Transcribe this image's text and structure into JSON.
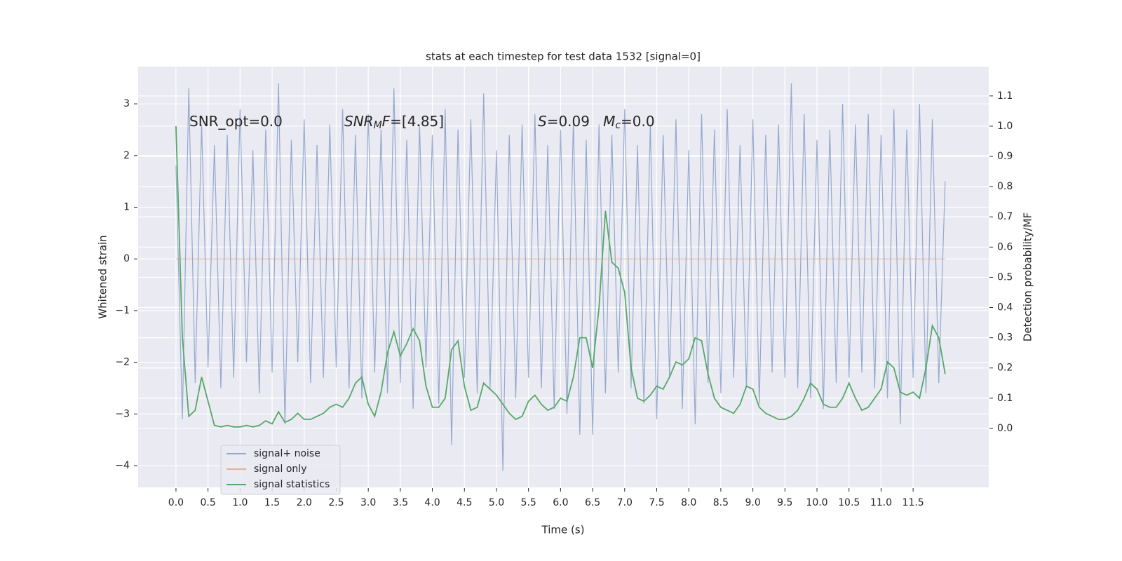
{
  "chart_data": {
    "type": "line",
    "title": "stats at each timestep for test data 1532 [signal=0]",
    "xlabel": "Time (s)",
    "ylabel": "Whitened strain",
    "y2label": "Detection probability/MF",
    "xlim": [
      -0.59,
      12.68
    ],
    "ylim": [
      -4.42,
      3.72
    ],
    "y2lim": [
      -0.195,
      1.197
    ],
    "xticks": [
      {
        "value": 0,
        "label": "0.0"
      },
      {
        "value": 0.5,
        "label": "0.5"
      },
      {
        "value": 1,
        "label": "1.0"
      },
      {
        "value": 1.5,
        "label": "1.5"
      },
      {
        "value": 2,
        "label": "2.0"
      },
      {
        "value": 2.5,
        "label": "2.5"
      },
      {
        "value": 3,
        "label": "3.0"
      },
      {
        "value": 3.5,
        "label": "3.5"
      },
      {
        "value": 4,
        "label": "4.0"
      },
      {
        "value": 4.5,
        "label": "4.5"
      },
      {
        "value": 5,
        "label": "5.0"
      },
      {
        "value": 5.5,
        "label": "5.5"
      },
      {
        "value": 6,
        "label": "6.0"
      },
      {
        "value": 6.5,
        "label": "6.5"
      },
      {
        "value": 7,
        "label": "7.0"
      },
      {
        "value": 7.5,
        "label": "7.5"
      },
      {
        "value": 8,
        "label": "8.0"
      },
      {
        "value": 8.5,
        "label": "8.5"
      },
      {
        "value": 9,
        "label": "9.0"
      },
      {
        "value": 9.5,
        "label": "9.5"
      },
      {
        "value": 10,
        "label": "10.0"
      },
      {
        "value": 10.5,
        "label": "10.5"
      },
      {
        "value": 11,
        "label": "11.0"
      },
      {
        "value": 11.5,
        "label": "11.5"
      }
    ],
    "yticks": [
      3,
      2,
      1,
      0,
      {
        "value": -1,
        "label": "−1"
      },
      {
        "value": -2,
        "label": "−2"
      },
      {
        "value": -3,
        "label": "−3"
      },
      {
        "value": -4,
        "label": "−4"
      }
    ],
    "y2ticks": [
      {
        "value": 0,
        "label": "0.0"
      },
      {
        "value": 0.1,
        "label": "0.1"
      },
      {
        "value": 0.2,
        "label": "0.2"
      },
      {
        "value": 0.3,
        "label": "0.3"
      },
      {
        "value": 0.4,
        "label": "0.4"
      },
      {
        "value": 0.5,
        "label": "0.5"
      },
      {
        "value": 0.6,
        "label": "0.6"
      },
      {
        "value": 0.7,
        "label": "0.7"
      },
      {
        "value": 0.8,
        "label": "0.8"
      },
      {
        "value": 0.9,
        "label": "0.9"
      },
      {
        "value": 1,
        "label": "1.0"
      },
      {
        "value": 1.1,
        "label": "1.1"
      }
    ],
    "grid": true,
    "legend": "lower left",
    "x": [
      0,
      0.1,
      0.2,
      0.3,
      0.4,
      0.5,
      0.6,
      0.7,
      0.8,
      0.9,
      1,
      1.1,
      1.2,
      1.3,
      1.4,
      1.5,
      1.6,
      1.7,
      1.8,
      1.9,
      2,
      2.1,
      2.2,
      2.3,
      2.4,
      2.5,
      2.6,
      2.7,
      2.8,
      2.9,
      3,
      3.1,
      3.2,
      3.3,
      3.4,
      3.5,
      3.6,
      3.7,
      3.8,
      3.9,
      4,
      4.1,
      4.2,
      4.3,
      4.4,
      4.5,
      4.6,
      4.7,
      4.8,
      4.9,
      5,
      5.1,
      5.2,
      5.3,
      5.4,
      5.5,
      5.6,
      5.7,
      5.8,
      5.9,
      6,
      6.1,
      6.2,
      6.3,
      6.4,
      6.5,
      6.6,
      6.7,
      6.8,
      6.9,
      7,
      7.1,
      7.2,
      7.3,
      7.4,
      7.5,
      7.6,
      7.7,
      7.8,
      7.9,
      8,
      8.1,
      8.2,
      8.3,
      8.4,
      8.5,
      8.6,
      8.7,
      8.8,
      8.9,
      9,
      9.1,
      9.2,
      9.3,
      9.4,
      9.5,
      9.6,
      9.7,
      9.8,
      9.9,
      10,
      10.1,
      10.2,
      10.3,
      10.4,
      10.5,
      10.6,
      10.7,
      10.8,
      10.9,
      11,
      11.1,
      11.2,
      11.3,
      11.4,
      11.5,
      11.6,
      11.7,
      11.8,
      11.9,
      12
    ],
    "series": [
      {
        "name": "signal+ noise",
        "color": "#4c72b0",
        "values": [
          1.8,
          -3.1,
          3.3,
          -2.4,
          2.6,
          -2.1,
          2.2,
          -2.5,
          2.4,
          -2.3,
          2.9,
          -2.0,
          2.1,
          -2.6,
          2.5,
          -2.2,
          3.4,
          -3.2,
          2.3,
          -2.0,
          2.7,
          -2.4,
          2.2,
          -2.3,
          2.6,
          -2.1,
          2.9,
          -2.5,
          2.4,
          -2.7,
          2.8,
          -2.2,
          2.5,
          -2.6,
          3.3,
          -2.4,
          2.3,
          -2.9,
          2.6,
          -2.1,
          2.4,
          -2.8,
          2.9,
          -3.6,
          2.5,
          -2.3,
          2.7,
          -2.6,
          3.2,
          -2.5,
          2.1,
          -4.1,
          2.4,
          -2.7,
          2.6,
          -2.3,
          2.8,
          -2.5,
          2.2,
          -2.9,
          2.5,
          -3.0,
          2.7,
          -3.4,
          2.3,
          -3.4,
          2.6,
          -2.6,
          2.4,
          -2.2,
          2.9,
          -2.5,
          2.2,
          -2.8,
          2.6,
          -3.1,
          2.4,
          -2.3,
          2.7,
          -2.9,
          2.1,
          -3.2,
          2.8,
          -2.4,
          2.5,
          -2.6,
          2.9,
          -2.3,
          2.2,
          -2.5,
          2.7,
          -2.8,
          2.4,
          -2.2,
          2.6,
          -2.3,
          3.4,
          -2.5,
          2.8,
          -2.7,
          2.3,
          -2.9,
          2.5,
          -2.4,
          3.0,
          -2.3,
          2.6,
          -2.2,
          2.8,
          -2.5,
          2.4,
          -2.7,
          2.9,
          -3.2,
          2.5,
          -2.3,
          3.0,
          -2.6,
          2.7,
          -2.4,
          1.5
        ]
      },
      {
        "name": "signal only",
        "color": "#dd8452",
        "values": [
          0,
          0,
          0,
          0,
          0,
          0,
          0,
          0,
          0,
          0,
          0,
          0,
          0,
          0,
          0,
          0,
          0,
          0,
          0,
          0,
          0,
          0,
          0,
          0,
          0,
          0,
          0,
          0,
          0,
          0,
          0,
          0,
          0,
          0,
          0,
          0,
          0,
          0,
          0,
          0,
          0,
          0,
          0,
          0,
          0,
          0,
          0,
          0,
          0,
          0,
          0,
          0,
          0,
          0,
          0,
          0,
          0,
          0,
          0,
          0,
          0,
          0,
          0,
          0,
          0,
          0,
          0,
          0,
          0,
          0,
          0,
          0,
          0,
          0,
          0,
          0,
          0,
          0,
          0,
          0,
          0,
          0,
          0,
          0,
          0,
          0,
          0,
          0,
          0,
          0,
          0,
          0,
          0,
          0,
          0,
          0,
          0,
          0,
          0,
          0,
          0,
          0,
          0,
          0,
          0,
          0,
          0,
          0,
          0,
          0,
          0,
          0,
          0,
          0,
          0,
          0,
          0,
          0,
          0,
          0,
          0
        ]
      },
      {
        "name": "signal statistics",
        "color": "#55a868",
        "axis": "y2",
        "values": [
          1.0,
          0.3,
          0.04,
          0.06,
          0.17,
          0.09,
          0.01,
          0.005,
          0.01,
          0.005,
          0.005,
          0.01,
          0.005,
          0.01,
          0.025,
          0.015,
          0.055,
          0.02,
          0.03,
          0.05,
          0.03,
          0.03,
          0.04,
          0.05,
          0.07,
          0.08,
          0.07,
          0.1,
          0.15,
          0.17,
          0.08,
          0.04,
          0.12,
          0.25,
          0.32,
          0.24,
          0.28,
          0.33,
          0.29,
          0.14,
          0.07,
          0.07,
          0.1,
          0.26,
          0.29,
          0.14,
          0.06,
          0.07,
          0.15,
          0.13,
          0.11,
          0.08,
          0.05,
          0.03,
          0.04,
          0.09,
          0.11,
          0.08,
          0.06,
          0.07,
          0.1,
          0.09,
          0.17,
          0.3,
          0.3,
          0.2,
          0.4,
          0.72,
          0.55,
          0.53,
          0.45,
          0.2,
          0.1,
          0.09,
          0.11,
          0.14,
          0.13,
          0.17,
          0.22,
          0.21,
          0.23,
          0.3,
          0.29,
          0.18,
          0.1,
          0.07,
          0.06,
          0.05,
          0.08,
          0.14,
          0.13,
          0.07,
          0.05,
          0.04,
          0.03,
          0.03,
          0.04,
          0.06,
          0.1,
          0.15,
          0.13,
          0.08,
          0.07,
          0.07,
          0.1,
          0.15,
          0.1,
          0.06,
          0.07,
          0.1,
          0.13,
          0.22,
          0.2,
          0.12,
          0.11,
          0.12,
          0.1,
          0.2,
          0.34,
          0.3,
          0.18
        ]
      }
    ],
    "annotations": [
      {
        "parts": [
          {
            "text": "SNR_opt=0.0"
          }
        ]
      },
      {
        "parts": [
          {
            "text": "SNR",
            "italic": true
          },
          {
            "text": "M",
            "italic": true,
            "sub": true
          },
          {
            "text": "F",
            "italic": true
          },
          {
            "text": "=[4.85]"
          }
        ]
      },
      {
        "parts": [
          {
            "text": "S",
            "italic": true
          },
          {
            "text": "=0.09   "
          },
          {
            "text": "M",
            "italic": true
          },
          {
            "text": "c",
            "italic": true,
            "sub": true
          },
          {
            "text": "=0.0"
          }
        ]
      }
    ]
  }
}
